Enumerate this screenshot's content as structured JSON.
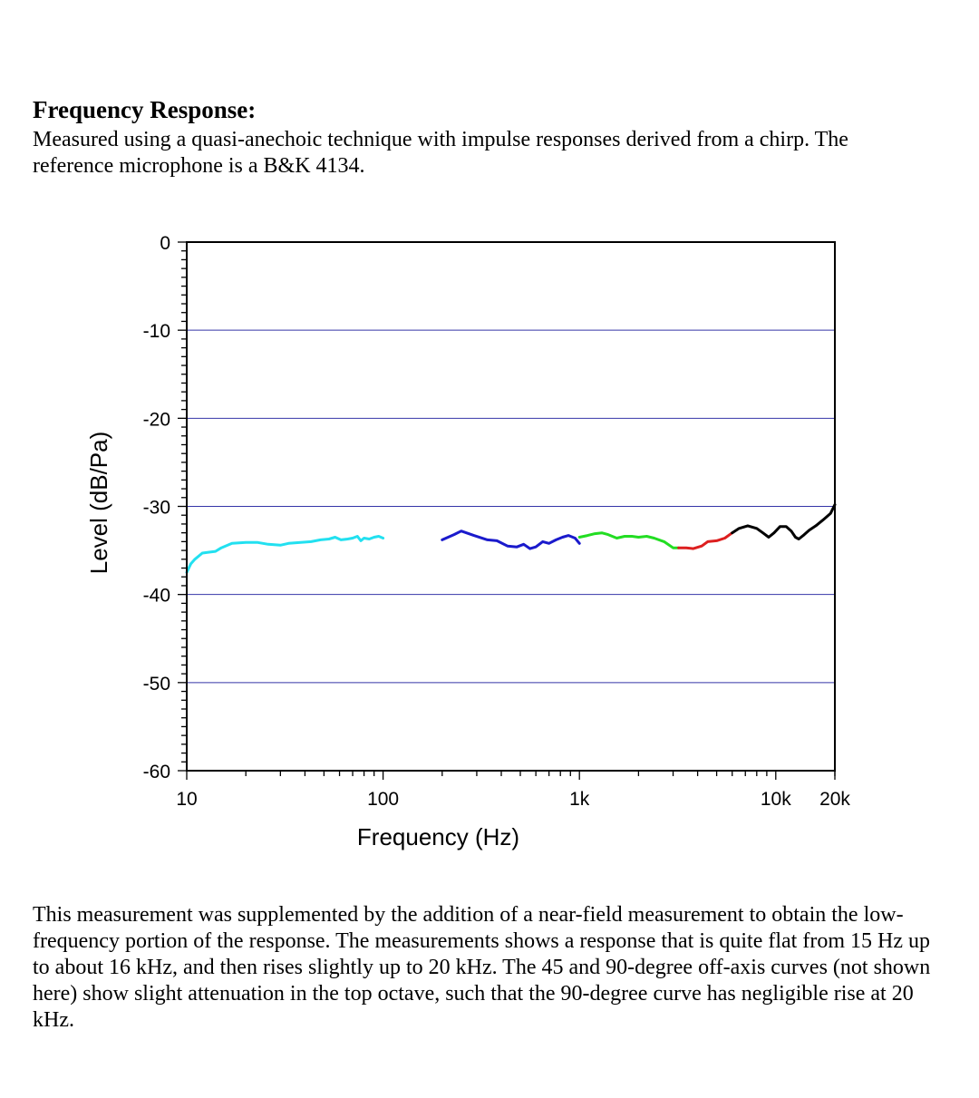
{
  "page": {
    "heading": "Frequency Response:",
    "intro": "Measured using a quasi-anechoic technique with impulse responses derived from a chirp.  The reference microphone is a B&K 4134.",
    "body": "This measurement was supplemented by the addition of a near-field measurement to obtain the low-frequency portion of the response.  The measurements shows a response that is quite flat from 15 Hz up to about 16 kHz, and then rises slightly up to 20 kHz.  The 45 and 90-degree off-axis curves (not shown here) show slight attenuation in the top octave, such that the 90-degree curve has negligible rise at 20 kHz."
  },
  "chart_data": {
    "type": "line",
    "title": "",
    "xlabel": "Frequency (Hz)",
    "ylabel": "Level (dB/Pa)",
    "xscale": "log",
    "xlim": [
      10,
      20000
    ],
    "ylim": [
      -60,
      0
    ],
    "x_ticks": [
      {
        "value": 10,
        "label": "10"
      },
      {
        "value": 100,
        "label": "100"
      },
      {
        "value": 1000,
        "label": "1k"
      },
      {
        "value": 10000,
        "label": "10k"
      },
      {
        "value": 20000,
        "label": "20k"
      }
    ],
    "y_ticks": [
      {
        "value": 0,
        "label": "0"
      },
      {
        "value": -10,
        "label": "-10"
      },
      {
        "value": -20,
        "label": "-20"
      },
      {
        "value": -30,
        "label": "-30"
      },
      {
        "value": -40,
        "label": "-40"
      },
      {
        "value": -50,
        "label": "-50"
      },
      {
        "value": -60,
        "label": "-60"
      }
    ],
    "grid": {
      "horizontal": true,
      "vertical": false,
      "color": "#3535a8"
    },
    "legend": "none",
    "series": [
      {
        "color": "#22e0f0",
        "points": [
          [
            10,
            -37.5
          ],
          [
            10.5,
            -36.5
          ],
          [
            11,
            -36
          ],
          [
            12,
            -35.3
          ],
          [
            13,
            -35.2
          ],
          [
            14,
            -35.1
          ],
          [
            15,
            -34.7
          ],
          [
            17,
            -34.2
          ],
          [
            20,
            -34.1
          ],
          [
            23,
            -34.1
          ],
          [
            26,
            -34.3
          ],
          [
            30,
            -34.4
          ],
          [
            33,
            -34.2
          ],
          [
            38,
            -34.1
          ],
          [
            43,
            -34
          ],
          [
            48,
            -33.8
          ],
          [
            53,
            -33.7
          ],
          [
            57,
            -33.5
          ],
          [
            61,
            -33.8
          ],
          [
            66,
            -33.7
          ],
          [
            70,
            -33.6
          ],
          [
            74,
            -33.4
          ],
          [
            77,
            -33.9
          ],
          [
            80,
            -33.6
          ],
          [
            85,
            -33.7
          ],
          [
            90,
            -33.5
          ],
          [
            95,
            -33.4
          ],
          [
            100,
            -33.6
          ]
        ]
      },
      {
        "color": "#1a1acc",
        "points": [
          [
            200,
            -33.8
          ],
          [
            230,
            -33.2
          ],
          [
            250,
            -32.8
          ],
          [
            290,
            -33.3
          ],
          [
            340,
            -33.8
          ],
          [
            380,
            -33.9
          ],
          [
            430,
            -34.5
          ],
          [
            480,
            -34.6
          ],
          [
            520,
            -34.3
          ],
          [
            560,
            -34.8
          ],
          [
            600,
            -34.6
          ],
          [
            650,
            -34
          ],
          [
            700,
            -34.2
          ],
          [
            760,
            -33.8
          ],
          [
            820,
            -33.5
          ],
          [
            880,
            -33.3
          ],
          [
            950,
            -33.6
          ],
          [
            1000,
            -34.2
          ]
        ]
      },
      {
        "color": "#22dd22",
        "points": [
          [
            1000,
            -33.5
          ],
          [
            1100,
            -33.3
          ],
          [
            1200,
            -33.1
          ],
          [
            1300,
            -33
          ],
          [
            1400,
            -33.2
          ],
          [
            1550,
            -33.6
          ],
          [
            1700,
            -33.4
          ],
          [
            1850,
            -33.4
          ],
          [
            2000,
            -33.5
          ],
          [
            2200,
            -33.4
          ],
          [
            2400,
            -33.6
          ],
          [
            2700,
            -34
          ],
          [
            3000,
            -34.7
          ],
          [
            3200,
            -34.7
          ]
        ]
      },
      {
        "color": "#dd1f1f",
        "points": [
          [
            3200,
            -34.7
          ],
          [
            3500,
            -34.7
          ],
          [
            3800,
            -34.8
          ],
          [
            4200,
            -34.5
          ],
          [
            4500,
            -34
          ],
          [
            5000,
            -33.9
          ],
          [
            5500,
            -33.6
          ],
          [
            6000,
            -33
          ]
        ]
      },
      {
        "color": "#000000",
        "points": [
          [
            6000,
            -33
          ],
          [
            6500,
            -32.5
          ],
          [
            7200,
            -32.2
          ],
          [
            8000,
            -32.5
          ],
          [
            8600,
            -33
          ],
          [
            9200,
            -33.5
          ],
          [
            9800,
            -33
          ],
          [
            10500,
            -32.3
          ],
          [
            11300,
            -32.3
          ],
          [
            12000,
            -32.8
          ],
          [
            12600,
            -33.5
          ],
          [
            13100,
            -33.7
          ],
          [
            13800,
            -33.3
          ],
          [
            14800,
            -32.7
          ],
          [
            16000,
            -32.2
          ],
          [
            17500,
            -31.5
          ],
          [
            19000,
            -30.8
          ],
          [
            20000,
            -29.8
          ]
        ]
      }
    ]
  }
}
